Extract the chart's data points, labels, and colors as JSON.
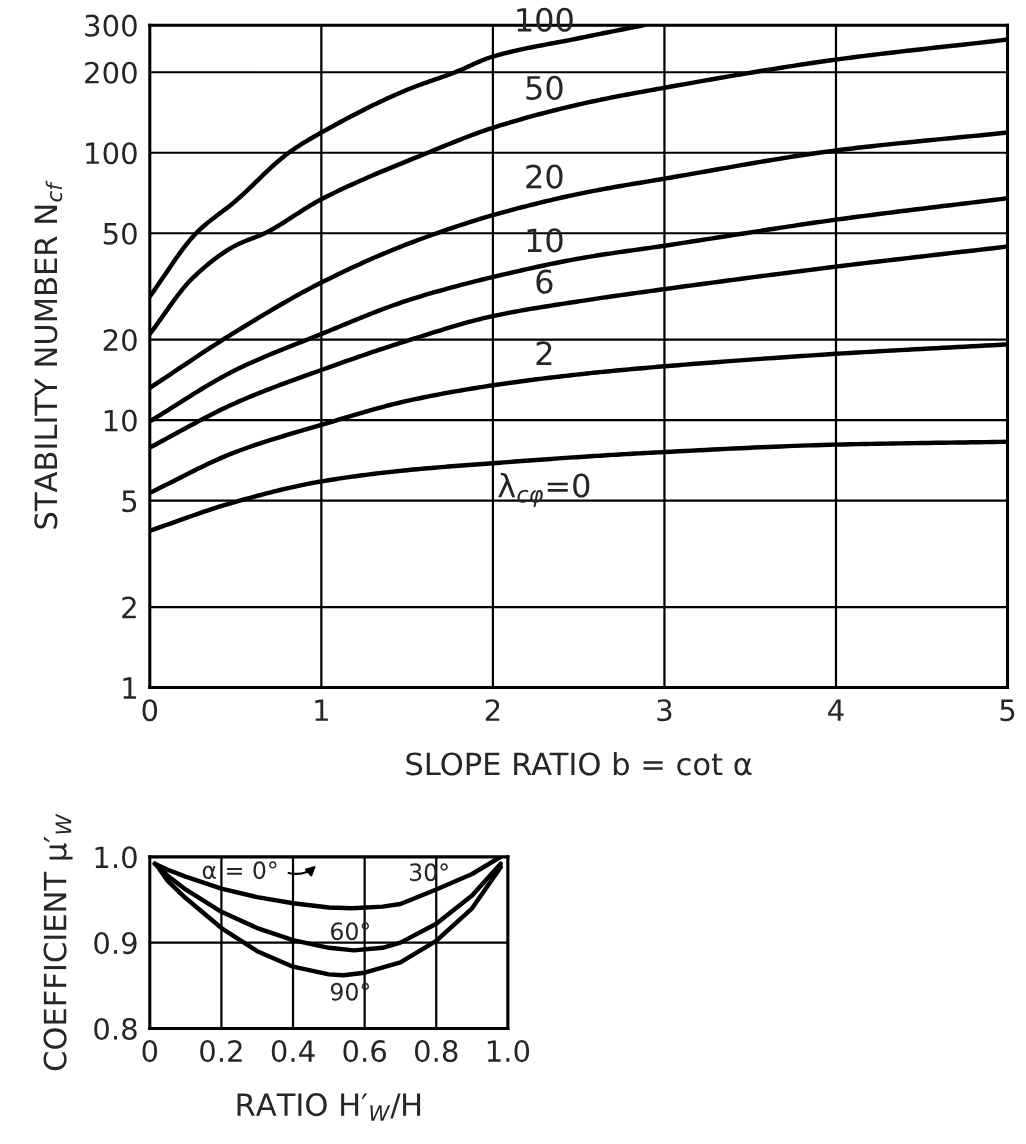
{
  "chart_data": [
    {
      "type": "line",
      "xlabel": "SLOPE RATIO b = cot α",
      "ylabel": "STABILITY NUMBER N$_{cf}$",
      "log": "y",
      "grid": true,
      "legend": false,
      "marker": "none",
      "line_style": "solid",
      "xlim": [
        0,
        5
      ],
      "ylim": [
        1,
        300
      ],
      "xticks": [
        0,
        1,
        2,
        3,
        4,
        5
      ],
      "yticks": [
        1,
        2,
        5,
        10,
        20,
        50,
        100,
        200,
        300
      ],
      "series": [
        {
          "name": "100",
          "color": "#000000",
          "x": [
            0,
            0.27,
            0.5,
            0.81,
            1,
            1.5,
            1.78,
            2,
            2.5,
            2.88
          ],
          "values": [
            29,
            50,
            66,
            100,
            119,
            172,
            200,
            229,
            268,
            300
          ]
        },
        {
          "name": "50",
          "color": "#000000",
          "x": [
            0,
            0.25,
            0.5,
            0.67,
            1,
            1.62,
            2,
            2.53,
            3,
            4,
            5
          ],
          "values": [
            21,
            34,
            45,
            50,
            67,
            100,
            124,
            153,
            175,
            223,
            265
          ]
        },
        {
          "name": "20",
          "color": "#000000",
          "x": [
            0,
            0.5,
            1,
            1.5,
            2,
            2.53,
            3,
            4,
            5
          ],
          "values": [
            13.2,
            21.4,
            32.7,
            45.5,
            58.4,
            70.8,
            80,
            102,
            119
          ]
        },
        {
          "name": "10",
          "color": "#000000",
          "x": [
            0,
            0.5,
            1,
            1.5,
            2,
            2.53,
            3,
            4,
            5
          ],
          "values": [
            9.9,
            15.4,
            21,
            28,
            34.3,
            40.5,
            44.9,
            56.2,
            67.6
          ]
        },
        {
          "name": "6",
          "color": "#000000",
          "x": [
            0,
            0.5,
            1,
            1.5,
            2,
            2.53,
            3,
            4,
            5
          ],
          "values": [
            7.9,
            11.6,
            15.4,
            19.8,
            24.5,
            28,
            30.9,
            37.5,
            44.6
          ]
        },
        {
          "name": "2",
          "color": "#000000",
          "x": [
            0,
            0.5,
            1,
            1.5,
            2,
            2.53,
            3,
            4,
            5
          ],
          "values": [
            5.35,
            7.6,
            9.6,
            11.8,
            13.5,
            14.9,
            15.9,
            17.7,
            19.2
          ]
        },
        {
          "name": "λ$_{cφ}$=0",
          "color": "#000000",
          "x": [
            0,
            0.5,
            1,
            1.5,
            2,
            2.53,
            3,
            4,
            5
          ],
          "values": [
            3.86,
            4.95,
            5.9,
            6.5,
            6.9,
            7.3,
            7.6,
            8.1,
            8.3
          ]
        }
      ]
    },
    {
      "type": "line",
      "xlabel": "RATIO H′$_{W}$/H",
      "ylabel": "COEFFICIENT μ′$_{W}$",
      "grid": true,
      "legend": false,
      "marker": "none",
      "line_style": "solid",
      "xlim": [
        0,
        1
      ],
      "ylim": [
        0.8,
        1
      ],
      "xticks": [
        0,
        0.2,
        0.4,
        0.6,
        0.8,
        {
          "value": 1,
          "label": "1.0"
        }
      ],
      "yticks": [
        0.8,
        0.9,
        {
          "value": 1,
          "label": "1.0"
        }
      ],
      "annotations": [
        "α = 0°"
      ],
      "series": [
        {
          "name": "30°",
          "color": "#000000",
          "x": [
            0.014,
            0.05,
            0.1,
            0.2,
            0.3,
            0.4,
            0.5,
            0.566,
            0.65,
            0.7,
            0.8,
            0.9,
            0.98
          ],
          "values": [
            0.992,
            0.985,
            0.977,
            0.963,
            0.953,
            0.946,
            0.941,
            0.94,
            0.942,
            0.945,
            0.962,
            0.98,
            1
          ]
        },
        {
          "name": "60°",
          "color": "#000000",
          "x": [
            0.014,
            0.05,
            0.1,
            0.2,
            0.3,
            0.4,
            0.5,
            0.57,
            0.65,
            0.7,
            0.8,
            0.9,
            0.98
          ],
          "values": [
            0.992,
            0.978,
            0.962,
            0.936,
            0.917,
            0.903,
            0.894,
            0.891,
            0.894,
            0.9,
            0.922,
            0.955,
            0.992
          ]
        },
        {
          "name": "90°",
          "color": "#000000",
          "x": [
            0.02,
            0.05,
            0.1,
            0.2,
            0.3,
            0.4,
            0.5,
            0.54,
            0.6,
            0.7,
            0.8,
            0.9,
            0.98
          ],
          "values": [
            0.99,
            0.972,
            0.952,
            0.917,
            0.89,
            0.872,
            0.863,
            0.862,
            0.865,
            0.877,
            0.902,
            0.94,
            0.988
          ]
        }
      ]
    }
  ]
}
